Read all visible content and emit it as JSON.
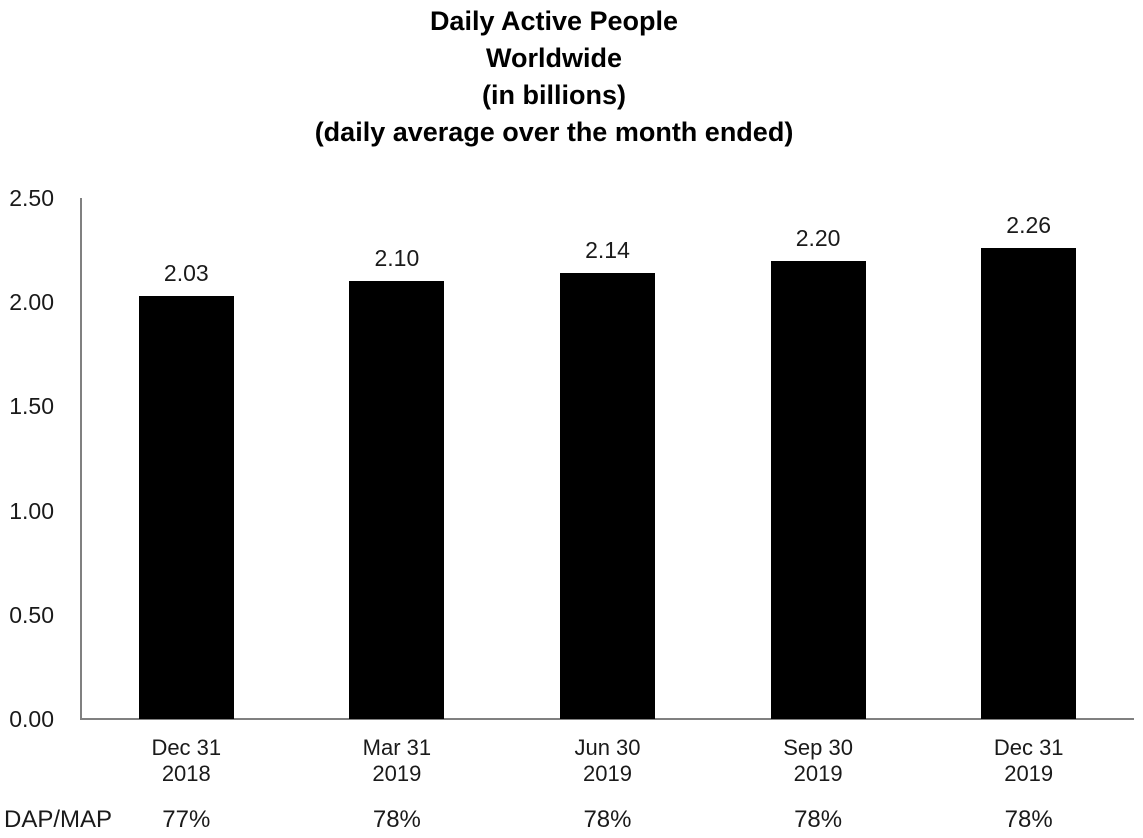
{
  "chart_data": {
    "type": "bar",
    "title_lines": [
      "Daily Active People",
      "Worldwide",
      "(in billions)",
      "(daily average over the month ended)"
    ],
    "categories": [
      [
        "Dec 31",
        "2018"
      ],
      [
        "Mar 31",
        "2019"
      ],
      [
        "Jun 30",
        "2019"
      ],
      [
        "Sep 30",
        "2019"
      ],
      [
        "Dec 31",
        "2019"
      ]
    ],
    "values": [
      2.03,
      2.1,
      2.14,
      2.2,
      2.26
    ],
    "value_labels": [
      "2.03",
      "2.10",
      "2.14",
      "2.20",
      "2.26"
    ],
    "y_tick_labels": [
      "2.50",
      "2.00",
      "1.50",
      "1.00",
      "0.50",
      "0.00"
    ],
    "ylim": [
      0.0,
      2.5
    ],
    "dap_map_label": "DAP/MAP",
    "dap_map_values": [
      "77%",
      "78%",
      "78%",
      "78%",
      "78%"
    ],
    "bar_color": "#000000",
    "axis_color": "#808080",
    "text_color": "#000000",
    "grid": "off",
    "legend": "none"
  }
}
